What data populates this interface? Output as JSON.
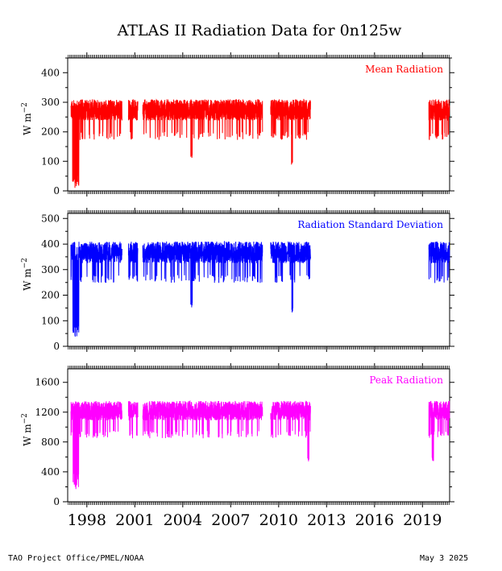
{
  "title": "ATLAS II Radiation Data for 0n125w",
  "footer": {
    "left": "TAO Project Office/PMEL/NOAA",
    "right": "May  3 2025"
  },
  "chart_data": {
    "type": "line",
    "x_axis": {
      "range": [
        1996.8,
        2020.7
      ],
      "tick_labels": [
        "1998",
        "2001",
        "2004",
        "2007",
        "2010",
        "2013",
        "2016",
        "2019"
      ],
      "tick_values": [
        1998,
        2001,
        2004,
        2007,
        2010,
        2013,
        2016,
        2019
      ]
    },
    "gaps": [
      [
        2000.2,
        2000.6
      ],
      [
        2001.2,
        2001.5
      ],
      [
        2009.0,
        2009.5
      ],
      [
        2012.0,
        2019.4
      ]
    ],
    "segments": [
      [
        1997.0,
        2000.2
      ],
      [
        2000.6,
        2001.2
      ],
      [
        2001.5,
        2009.0
      ],
      [
        2009.5,
        2012.0
      ],
      [
        2019.4,
        2020.7
      ]
    ],
    "panels": [
      {
        "label": "Mean Radiation",
        "color": "#ff0000",
        "ylabel": "W m",
        "ylabel_sup": "−2",
        "ylim": [
          0,
          450
        ],
        "yticks": [
          0,
          100,
          200,
          300,
          400
        ],
        "minor_step": 50,
        "typical": [
          200,
          310
        ],
        "dips": [
          [
            1997.1,
            1997.5,
            10,
            60
          ],
          [
            2004.5,
            2004.6,
            110,
            130
          ],
          [
            2010.8,
            2010.9,
            85,
            100
          ]
        ]
      },
      {
        "label": "Radiation Standard Deviation",
        "color": "#0000ff",
        "ylabel": "W m",
        "ylabel_sup": "−2",
        "ylim": [
          0,
          520
        ],
        "yticks": [
          0,
          100,
          200,
          300,
          400,
          500
        ],
        "minor_step": 50,
        "typical": [
          280,
          410
        ],
        "dips": [
          [
            1997.1,
            1997.5,
            35,
            90
          ],
          [
            2004.5,
            2004.6,
            150,
            170
          ],
          [
            2010.8,
            2010.9,
            130,
            150
          ]
        ]
      },
      {
        "label": "Peak Radiation",
        "color": "#ff00ff",
        "ylabel": "W m",
        "ylabel_sup": "−2",
        "ylim": [
          0,
          1780
        ],
        "yticks": [
          0,
          400,
          800,
          1200,
          1600
        ],
        "minor_step": 200,
        "typical": [
          950,
          1350
        ],
        "dips": [
          [
            1997.1,
            1997.5,
            130,
            400
          ],
          [
            2011.8,
            2011.9,
            540,
            600
          ],
          [
            2019.6,
            2019.7,
            540,
            600
          ]
        ]
      }
    ]
  }
}
